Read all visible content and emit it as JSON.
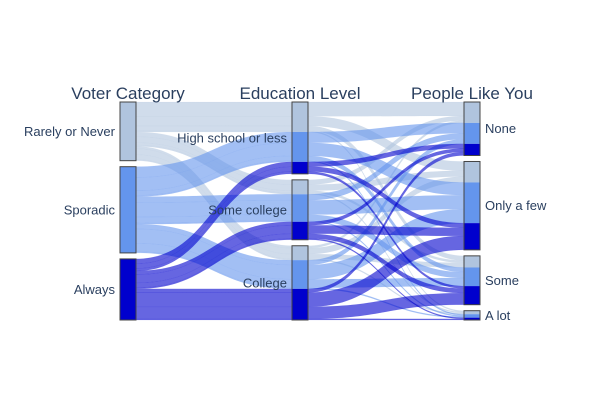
{
  "chart_data": {
    "type": "parallel-categories",
    "dimensions": [
      {
        "label": "Voter Category",
        "categories": [
          "Rarely or Never",
          "Sporadic",
          "Always"
        ]
      },
      {
        "label": "Education Level",
        "categories": [
          "High school or less",
          "Some college",
          "College"
        ]
      },
      {
        "label": "People Like You",
        "categories": [
          "None",
          "Only a few",
          "Some",
          "A lot"
        ]
      }
    ],
    "color_levels": [
      "#b0c4de",
      "#6495ed",
      "#0000cd"
    ],
    "color_level_by_voter_category": {
      "Rarely or Never": 0,
      "Sporadic": 1,
      "Always": 2
    },
    "counts": [
      {
        "voter": "Rarely or Never",
        "education": "High school or less",
        "people": "None",
        "count": 12
      },
      {
        "voter": "Rarely or Never",
        "education": "High school or less",
        "people": "Only a few",
        "count": 8
      },
      {
        "voter": "Rarely or Never",
        "education": "High school or less",
        "people": "Some",
        "count": 4
      },
      {
        "voter": "Rarely or Never",
        "education": "High school or less",
        "people": "A lot",
        "count": 1
      },
      {
        "voter": "Rarely or Never",
        "education": "Some college",
        "people": "None",
        "count": 4
      },
      {
        "voter": "Rarely or Never",
        "education": "Some college",
        "people": "Only a few",
        "count": 5
      },
      {
        "voter": "Rarely or Never",
        "education": "Some college",
        "people": "Some",
        "count": 2
      },
      {
        "voter": "Rarely or Never",
        "education": "Some college",
        "people": "A lot",
        "count": 1
      },
      {
        "voter": "Rarely or Never",
        "education": "College",
        "people": "None",
        "count": 2
      },
      {
        "voter": "Rarely or Never",
        "education": "College",
        "people": "Only a few",
        "count": 5
      },
      {
        "voter": "Rarely or Never",
        "education": "College",
        "people": "Some",
        "count": 4
      },
      {
        "voter": "Rarely or Never",
        "education": "College",
        "people": "A lot",
        "count": 1
      },
      {
        "voter": "Sporadic",
        "education": "High school or less",
        "people": "None",
        "count": 9
      },
      {
        "voter": "Sporadic",
        "education": "High school or less",
        "people": "Only a few",
        "count": 11
      },
      {
        "voter": "Sporadic",
        "education": "High school or less",
        "people": "Some",
        "count": 4
      },
      {
        "voter": "Sporadic",
        "education": "High school or less",
        "people": "A lot",
        "count": 1
      },
      {
        "voter": "Sporadic",
        "education": "Some college",
        "people": "None",
        "count": 5
      },
      {
        "voter": "Sporadic",
        "education": "Some college",
        "people": "Only a few",
        "count": 12
      },
      {
        "voter": "Sporadic",
        "education": "Some college",
        "people": "Some",
        "count": 5
      },
      {
        "voter": "Sporadic",
        "education": "Some college",
        "people": "A lot",
        "count": 1
      },
      {
        "voter": "Sporadic",
        "education": "College",
        "people": "None",
        "count": 4
      },
      {
        "voter": "Sporadic",
        "education": "College",
        "people": "Only a few",
        "count": 12
      },
      {
        "voter": "Sporadic",
        "education": "College",
        "people": "Some",
        "count": 7
      },
      {
        "voter": "Sporadic",
        "education": "College",
        "people": "A lot",
        "count": 1
      },
      {
        "voter": "Always",
        "education": "High school or less",
        "people": "None",
        "count": 4
      },
      {
        "voter": "Always",
        "education": "High school or less",
        "people": "Only a few",
        "count": 4
      },
      {
        "voter": "Always",
        "education": "High school or less",
        "people": "Some",
        "count": 2
      },
      {
        "voter": "Always",
        "education": "High school or less",
        "people": "A lot",
        "count": 0
      },
      {
        "voter": "Always",
        "education": "Some college",
        "people": "None",
        "count": 3
      },
      {
        "voter": "Always",
        "education": "Some college",
        "people": "Only a few",
        "count": 7
      },
      {
        "voter": "Always",
        "education": "Some college",
        "people": "Some",
        "count": 4
      },
      {
        "voter": "Always",
        "education": "Some college",
        "people": "A lot",
        "count": 1
      },
      {
        "voter": "Always",
        "education": "College",
        "people": "None",
        "count": 3
      },
      {
        "voter": "Always",
        "education": "College",
        "people": "Only a few",
        "count": 12
      },
      {
        "voter": "Always",
        "education": "College",
        "people": "Some",
        "count": 10
      },
      {
        "voter": "Always",
        "education": "College",
        "people": "A lot",
        "count": 1
      }
    ]
  }
}
